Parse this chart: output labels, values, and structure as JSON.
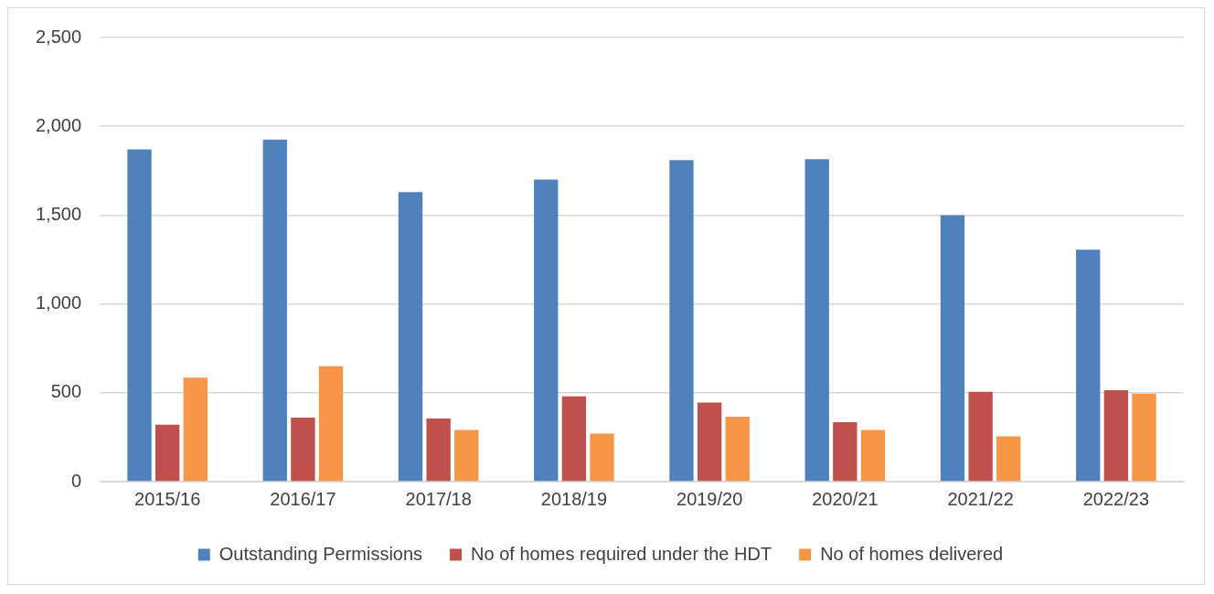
{
  "chart_data": {
    "type": "bar",
    "categories": [
      "2015/16",
      "2016/17",
      "2017/18",
      "2018/19",
      "2019/20",
      "2020/21",
      "2021/22",
      "2022/23"
    ],
    "series": [
      {
        "name": "Outstanding Permissions",
        "color": "#4f81bd",
        "values": [
          1870,
          1925,
          1630,
          1700,
          1810,
          1815,
          1500,
          1305
        ]
      },
      {
        "name": "No of homes required under the HDT",
        "color": "#c0504d",
        "values": [
          320,
          360,
          355,
          480,
          445,
          335,
          505,
          515
        ]
      },
      {
        "name": "No of homes delivered",
        "color": "#f79646",
        "values": [
          585,
          650,
          290,
          270,
          365,
          290,
          255,
          495
        ]
      }
    ],
    "ylim": [
      0,
      2500
    ],
    "yticks": [
      {
        "value": 0,
        "label": "0"
      },
      {
        "value": 500,
        "label": "500"
      },
      {
        "value": 1000,
        "label": "1,000"
      },
      {
        "value": 1500,
        "label": "1,500"
      },
      {
        "value": 2000,
        "label": "2,000"
      },
      {
        "value": 2500,
        "label": "2,500"
      }
    ],
    "grid": "y",
    "legend": "bottom"
  }
}
